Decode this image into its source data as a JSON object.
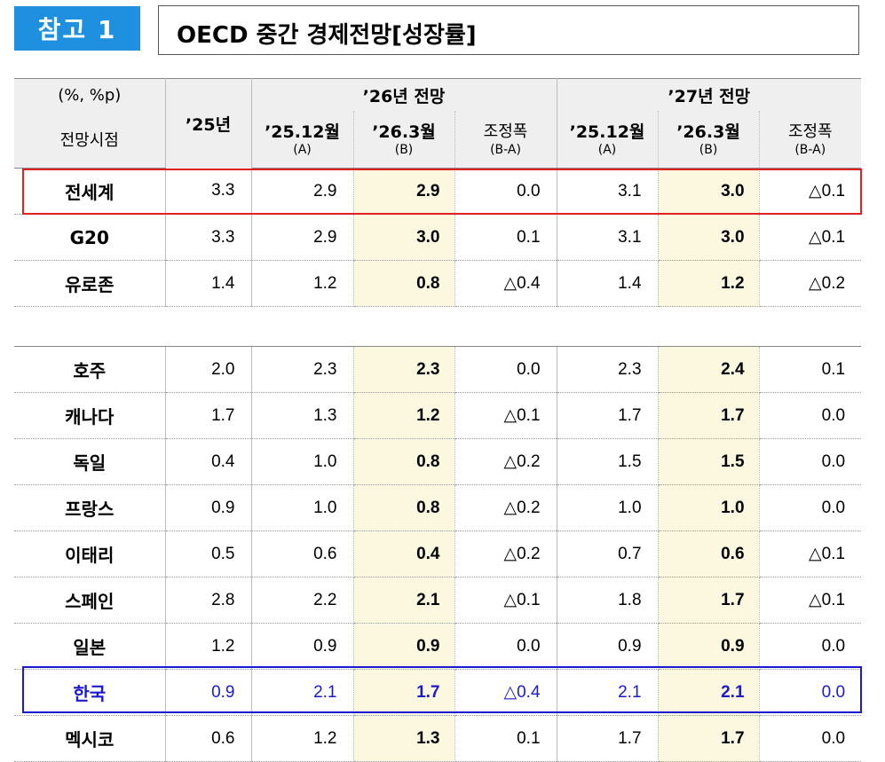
{
  "badge": "참고 1",
  "title": "OECD 중간 경제전망[성장률]",
  "header": {
    "unit": "(%, %p)",
    "as_of": "전망시점",
    "y25": "’25년",
    "group26": "’26년 전망",
    "group27": "’27년 전망",
    "prev": "’25.12월",
    "prev_sub": "(A)",
    "curr": "’26.3월",
    "curr_sub": "(B)",
    "adj": "조정폭",
    "adj_sub": "(B-A)"
  },
  "colors": {
    "badge": "#1f8fe0",
    "highlight": "#fbf8df",
    "red_box": "#e31f1f",
    "blue_box": "#1a1ad0"
  },
  "rows_top": [
    {
      "name": "전세계",
      "y25": "3.3",
      "a26": "2.9",
      "b26": "2.9",
      "d26": "0.0",
      "a27": "3.1",
      "b27": "3.0",
      "d27": "△0.1"
    },
    {
      "name": "G20",
      "y25": "3.3",
      "a26": "2.9",
      "b26": "3.0",
      "d26": "0.1",
      "a27": "3.1",
      "b27": "3.0",
      "d27": "△0.1"
    },
    {
      "name": "유로존",
      "y25": "1.4",
      "a26": "1.2",
      "b26": "0.8",
      "d26": "△0.4",
      "a27": "1.4",
      "b27": "1.2",
      "d27": "△0.2"
    }
  ],
  "rows_countries": [
    {
      "name": "호주",
      "y25": "2.0",
      "a26": "2.3",
      "b26": "2.3",
      "d26": "0.0",
      "a27": "2.3",
      "b27": "2.4",
      "d27": "0.1"
    },
    {
      "name": "캐나다",
      "y25": "1.7",
      "a26": "1.3",
      "b26": "1.2",
      "d26": "△0.1",
      "a27": "1.7",
      "b27": "1.7",
      "d27": "0.0"
    },
    {
      "name": "독일",
      "y25": "0.4",
      "a26": "1.0",
      "b26": "0.8",
      "d26": "△0.2",
      "a27": "1.5",
      "b27": "1.5",
      "d27": "0.0"
    },
    {
      "name": "프랑스",
      "y25": "0.9",
      "a26": "1.0",
      "b26": "0.8",
      "d26": "△0.2",
      "a27": "1.0",
      "b27": "1.0",
      "d27": "0.0"
    },
    {
      "name": "이태리",
      "y25": "0.5",
      "a26": "0.6",
      "b26": "0.4",
      "d26": "△0.2",
      "a27": "0.7",
      "b27": "0.6",
      "d27": "△0.1"
    },
    {
      "name": "스페인",
      "y25": "2.8",
      "a26": "2.2",
      "b26": "2.1",
      "d26": "△0.1",
      "a27": "1.8",
      "b27": "1.7",
      "d27": "△0.1"
    },
    {
      "name": "일본",
      "y25": "1.2",
      "a26": "0.9",
      "b26": "0.9",
      "d26": "0.0",
      "a27": "0.9",
      "b27": "0.9",
      "d27": "0.0"
    },
    {
      "name": "한국",
      "y25": "0.9",
      "a26": "2.1",
      "b26": "1.7",
      "d26": "△0.4",
      "a27": "2.1",
      "b27": "2.1",
      "d27": "0.0"
    },
    {
      "name": "멕시코",
      "y25": "0.6",
      "a26": "1.2",
      "b26": "1.3",
      "d26": "0.1",
      "a27": "1.7",
      "b27": "1.7",
      "d27": "0.0"
    }
  ]
}
